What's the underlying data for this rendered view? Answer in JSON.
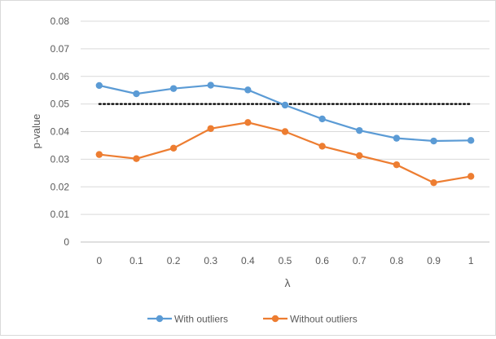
{
  "chart_data": {
    "type": "line",
    "title": "",
    "xlabel": "λ",
    "ylabel": "p-value",
    "x": [
      "0",
      "0.1",
      "0.2",
      "0.3",
      "0.4",
      "0.5",
      "0.6",
      "0.7",
      "0.8",
      "0.9",
      "1"
    ],
    "ylim": [
      0,
      0.08
    ],
    "yticks": [
      "0",
      "0.01",
      "0.02",
      "0.03",
      "0.04",
      "0.05",
      "0.06",
      "0.07",
      "0.08"
    ],
    "grid": true,
    "legend_position": "bottom",
    "reference_line": {
      "y": 0.05,
      "style": "dotted",
      "color": "#000000"
    },
    "series": [
      {
        "name": "With outliers",
        "color": "#5b9bd5",
        "values": [
          0.0567,
          0.0537,
          0.0556,
          0.0568,
          0.0551,
          0.0496,
          0.0446,
          0.0404,
          0.0376,
          0.0366,
          0.0368
        ]
      },
      {
        "name": "Without outliers",
        "color": "#ed7d31",
        "values": [
          0.0317,
          0.0302,
          0.034,
          0.0411,
          0.0433,
          0.04,
          0.0347,
          0.0313,
          0.028,
          0.0215,
          0.0238
        ]
      }
    ]
  }
}
